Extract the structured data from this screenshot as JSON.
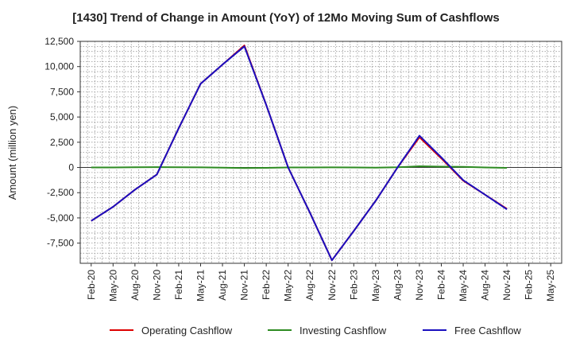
{
  "chart_data": {
    "type": "line",
    "title": "[1430]  Trend of Change in Amount (YoY) of 12Mo Moving Sum of Cashflows",
    "ylabel": "Amount (million yen)",
    "xlabel": "",
    "ylim": [
      -9500,
      12500
    ],
    "yticks": [
      12500,
      10000,
      7500,
      5000,
      2500,
      0,
      -2500,
      -5000,
      -7500
    ],
    "ytick_labels": [
      "12,500",
      "10,000",
      "7,500",
      "5,000",
      "2,500",
      "0",
      "-2,500",
      "-5,000",
      "-7,500"
    ],
    "x": [
      "Feb-20",
      "May-20",
      "Aug-20",
      "Nov-20",
      "Feb-21",
      "May-21",
      "Aug-21",
      "Nov-21",
      "Feb-22",
      "May-22",
      "Aug-22",
      "Nov-22",
      "Feb-23",
      "May-23",
      "Aug-23",
      "Nov-23",
      "Feb-24",
      "May-24",
      "Aug-24",
      "Nov-24",
      "Feb-25",
      "May-25"
    ],
    "grid": true,
    "legend_position": "bottom",
    "series": [
      {
        "name": "Operating Cashflow",
        "color": "#dd0000",
        "values": [
          -5300,
          -3900,
          -2200,
          -700,
          3900,
          8300,
          10200,
          12100,
          6200,
          0,
          -4500,
          -9200,
          -6300,
          -3300,
          0,
          3000,
          900,
          -1300,
          -2700,
          -4100,
          null,
          null
        ]
      },
      {
        "name": "Investing Cashflow",
        "color": "#2e8b22",
        "values": [
          0,
          0,
          20,
          30,
          20,
          10,
          -20,
          -60,
          -40,
          0,
          0,
          10,
          0,
          -20,
          20,
          120,
          80,
          60,
          0,
          -40,
          null,
          null
        ]
      },
      {
        "name": "Free Cashflow",
        "color": "#1a0fbf",
        "values": [
          -5300,
          -3900,
          -2200,
          -700,
          3900,
          8300,
          10200,
          12000,
          6200,
          0,
          -4500,
          -9200,
          -6300,
          -3300,
          0,
          3150,
          1000,
          -1250,
          -2700,
          -4150,
          null,
          null
        ]
      }
    ]
  }
}
